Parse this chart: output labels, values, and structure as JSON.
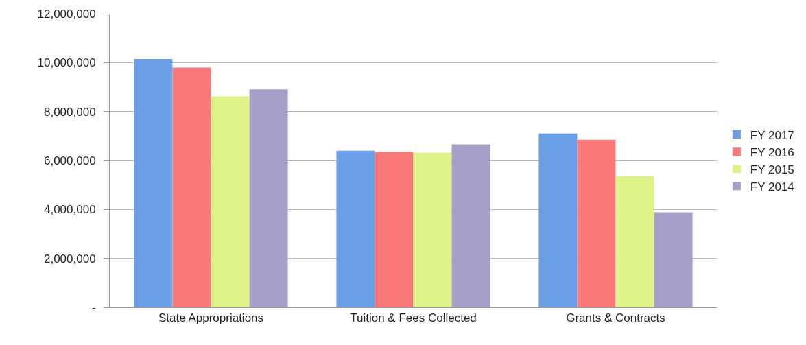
{
  "chart_data": {
    "type": "bar",
    "categories": [
      "State Appropriations",
      "Tuition & Fees Collected",
      "Grants & Contracts"
    ],
    "series": [
      {
        "name": "FY 2017",
        "color": "#6a9fe6",
        "values": [
          10150000,
          6400000,
          7100000
        ]
      },
      {
        "name": "FY 2016",
        "color": "#f87878",
        "values": [
          9800000,
          6350000,
          6850000
        ]
      },
      {
        "name": "FY 2015",
        "color": "#def28a",
        "values": [
          8620000,
          6320000,
          5360000
        ]
      },
      {
        "name": "FY 2014",
        "color": "#a89fc8",
        "values": [
          8910000,
          6660000,
          3880000
        ]
      }
    ],
    "ylim": [
      0,
      12000000
    ],
    "yticks": [
      {
        "value": 0,
        "label": "-"
      },
      {
        "value": 2000000,
        "label": "2,000,000"
      },
      {
        "value": 4000000,
        "label": "4,000,000"
      },
      {
        "value": 6000000,
        "label": "6,000,000"
      },
      {
        "value": 8000000,
        "label": "8,000,000"
      },
      {
        "value": 10000000,
        "label": "10,000,000"
      },
      {
        "value": 12000000,
        "label": "12,000,000"
      }
    ],
    "grid": "y",
    "legend": "right"
  }
}
